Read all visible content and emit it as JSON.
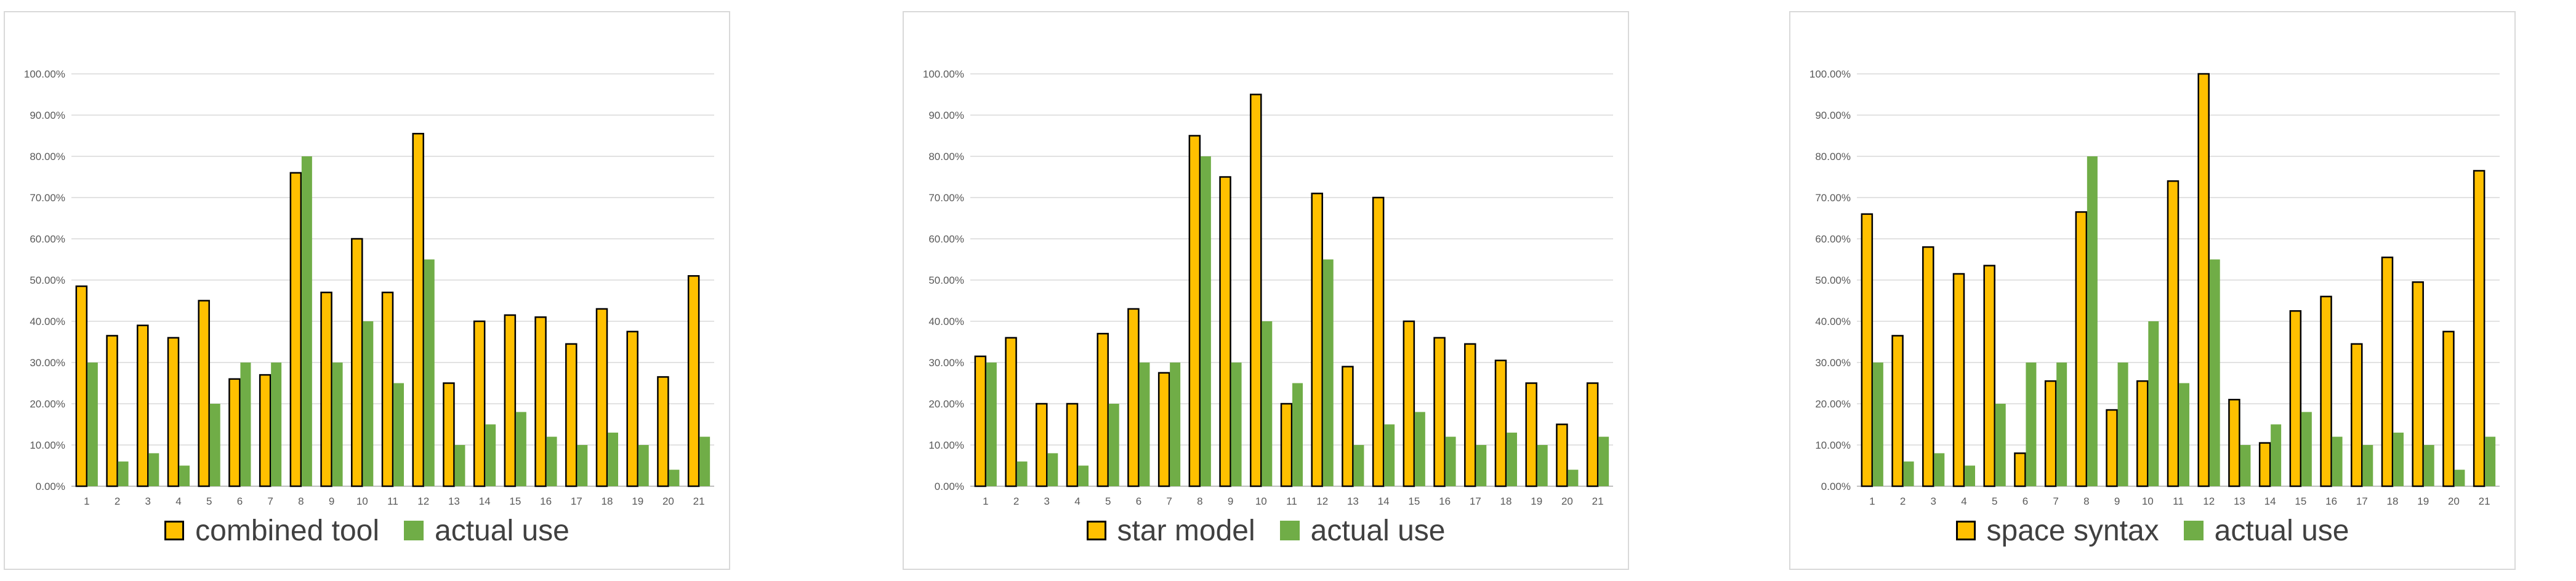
{
  "colors": {
    "model_fill": "#FFC000",
    "model_stroke": "#000000",
    "actual_fill": "#70AD47",
    "grid": "#d9d9d9",
    "axis": "#bfbfbf"
  },
  "chart_data": [
    {
      "type": "bar",
      "categories": [
        "1",
        "2",
        "3",
        "4",
        "5",
        "6",
        "7",
        "8",
        "9",
        "10",
        "11",
        "12",
        "13",
        "14",
        "15",
        "16",
        "17",
        "18",
        "19",
        "20",
        "21"
      ],
      "y_ticks": [
        "0.00%",
        "10.00%",
        "20.00%",
        "30.00%",
        "40.00%",
        "50.00%",
        "60.00%",
        "70.00%",
        "80.00%",
        "90.00%",
        "100.00%"
      ],
      "ylim": [
        0,
        100
      ],
      "grid": true,
      "legend_position": "bottom",
      "series": [
        {
          "name": "combined tool",
          "values": [
            48.5,
            36.5,
            39,
            36,
            45,
            26,
            27,
            76,
            47,
            60,
            47,
            85.5,
            25,
            40,
            41.5,
            41,
            34.5,
            43,
            37.5,
            26.5,
            51
          ]
        },
        {
          "name": "actual use",
          "values": [
            30,
            6,
            8,
            5,
            20,
            30,
            30,
            80,
            30,
            40,
            25,
            55,
            10,
            15,
            18,
            12,
            10,
            13,
            10,
            4,
            12
          ]
        }
      ]
    },
    {
      "type": "bar",
      "categories": [
        "1",
        "2",
        "3",
        "4",
        "5",
        "6",
        "7",
        "8",
        "9",
        "10",
        "11",
        "12",
        "13",
        "14",
        "15",
        "16",
        "17",
        "18",
        "19",
        "20",
        "21"
      ],
      "y_ticks": [
        "0.00%",
        "10.00%",
        "20.00%",
        "30.00%",
        "40.00%",
        "50.00%",
        "60.00%",
        "70.00%",
        "80.00%",
        "90.00%",
        "100.00%"
      ],
      "ylim": [
        0,
        100
      ],
      "grid": true,
      "legend_position": "bottom",
      "series": [
        {
          "name": "star model",
          "values": [
            31.5,
            36,
            20,
            20,
            37,
            43,
            27.5,
            85,
            75,
            95,
            20,
            71,
            29,
            70,
            40,
            36,
            34.5,
            30.5,
            25,
            15,
            25
          ]
        },
        {
          "name": "actual use",
          "values": [
            30,
            6,
            8,
            5,
            20,
            30,
            30,
            80,
            30,
            40,
            25,
            55,
            10,
            15,
            18,
            12,
            10,
            13,
            10,
            4,
            12
          ]
        }
      ]
    },
    {
      "type": "bar",
      "categories": [
        "1",
        "2",
        "3",
        "4",
        "5",
        "6",
        "7",
        "8",
        "9",
        "10",
        "11",
        "12",
        "13",
        "14",
        "15",
        "16",
        "17",
        "18",
        "19",
        "20",
        "21"
      ],
      "y_ticks": [
        "0.00%",
        "10.00%",
        "20.00%",
        "30.00%",
        "40.00%",
        "50.00%",
        "60.00%",
        "70.00%",
        "80.00%",
        "90.00%",
        "100.00%"
      ],
      "ylim": [
        0,
        100
      ],
      "grid": true,
      "legend_position": "bottom",
      "series": [
        {
          "name": "space syntax",
          "values": [
            66,
            36.5,
            58,
            51.5,
            53.5,
            8,
            25.5,
            66.5,
            18.5,
            25.5,
            74,
            100,
            21,
            10.5,
            42.5,
            46,
            34.5,
            55.5,
            49.5,
            37.5,
            76.5
          ]
        },
        {
          "name": "actual use",
          "values": [
            30,
            6,
            8,
            5,
            20,
            30,
            30,
            80,
            30,
            40,
            25,
            55,
            10,
            15,
            18,
            12,
            10,
            13,
            10,
            4,
            12
          ]
        }
      ]
    }
  ]
}
